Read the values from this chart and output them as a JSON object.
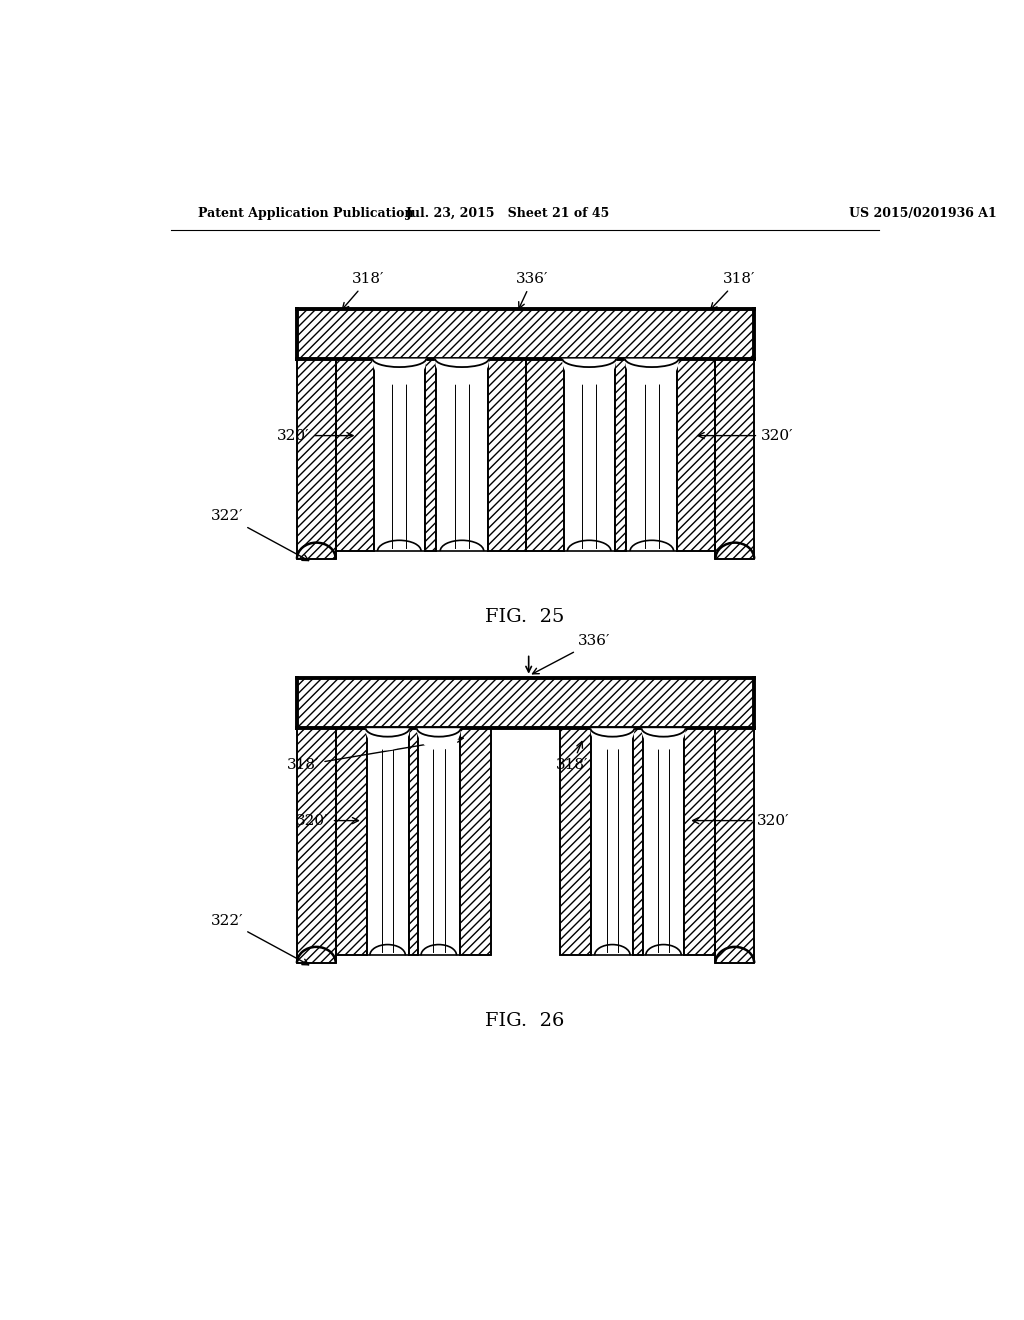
{
  "header_left": "Patent Application Publication",
  "header_mid": "Jul. 23, 2015   Sheet 21 of 45",
  "header_right": "US 2015/0201936 A1",
  "fig25_label": "FIG.  25",
  "fig26_label": "FIG.  26",
  "label_318": "318′",
  "label_336": "336′",
  "label_320": "320′",
  "label_322": "322′",
  "background": "#ffffff",
  "line_color": "#000000"
}
